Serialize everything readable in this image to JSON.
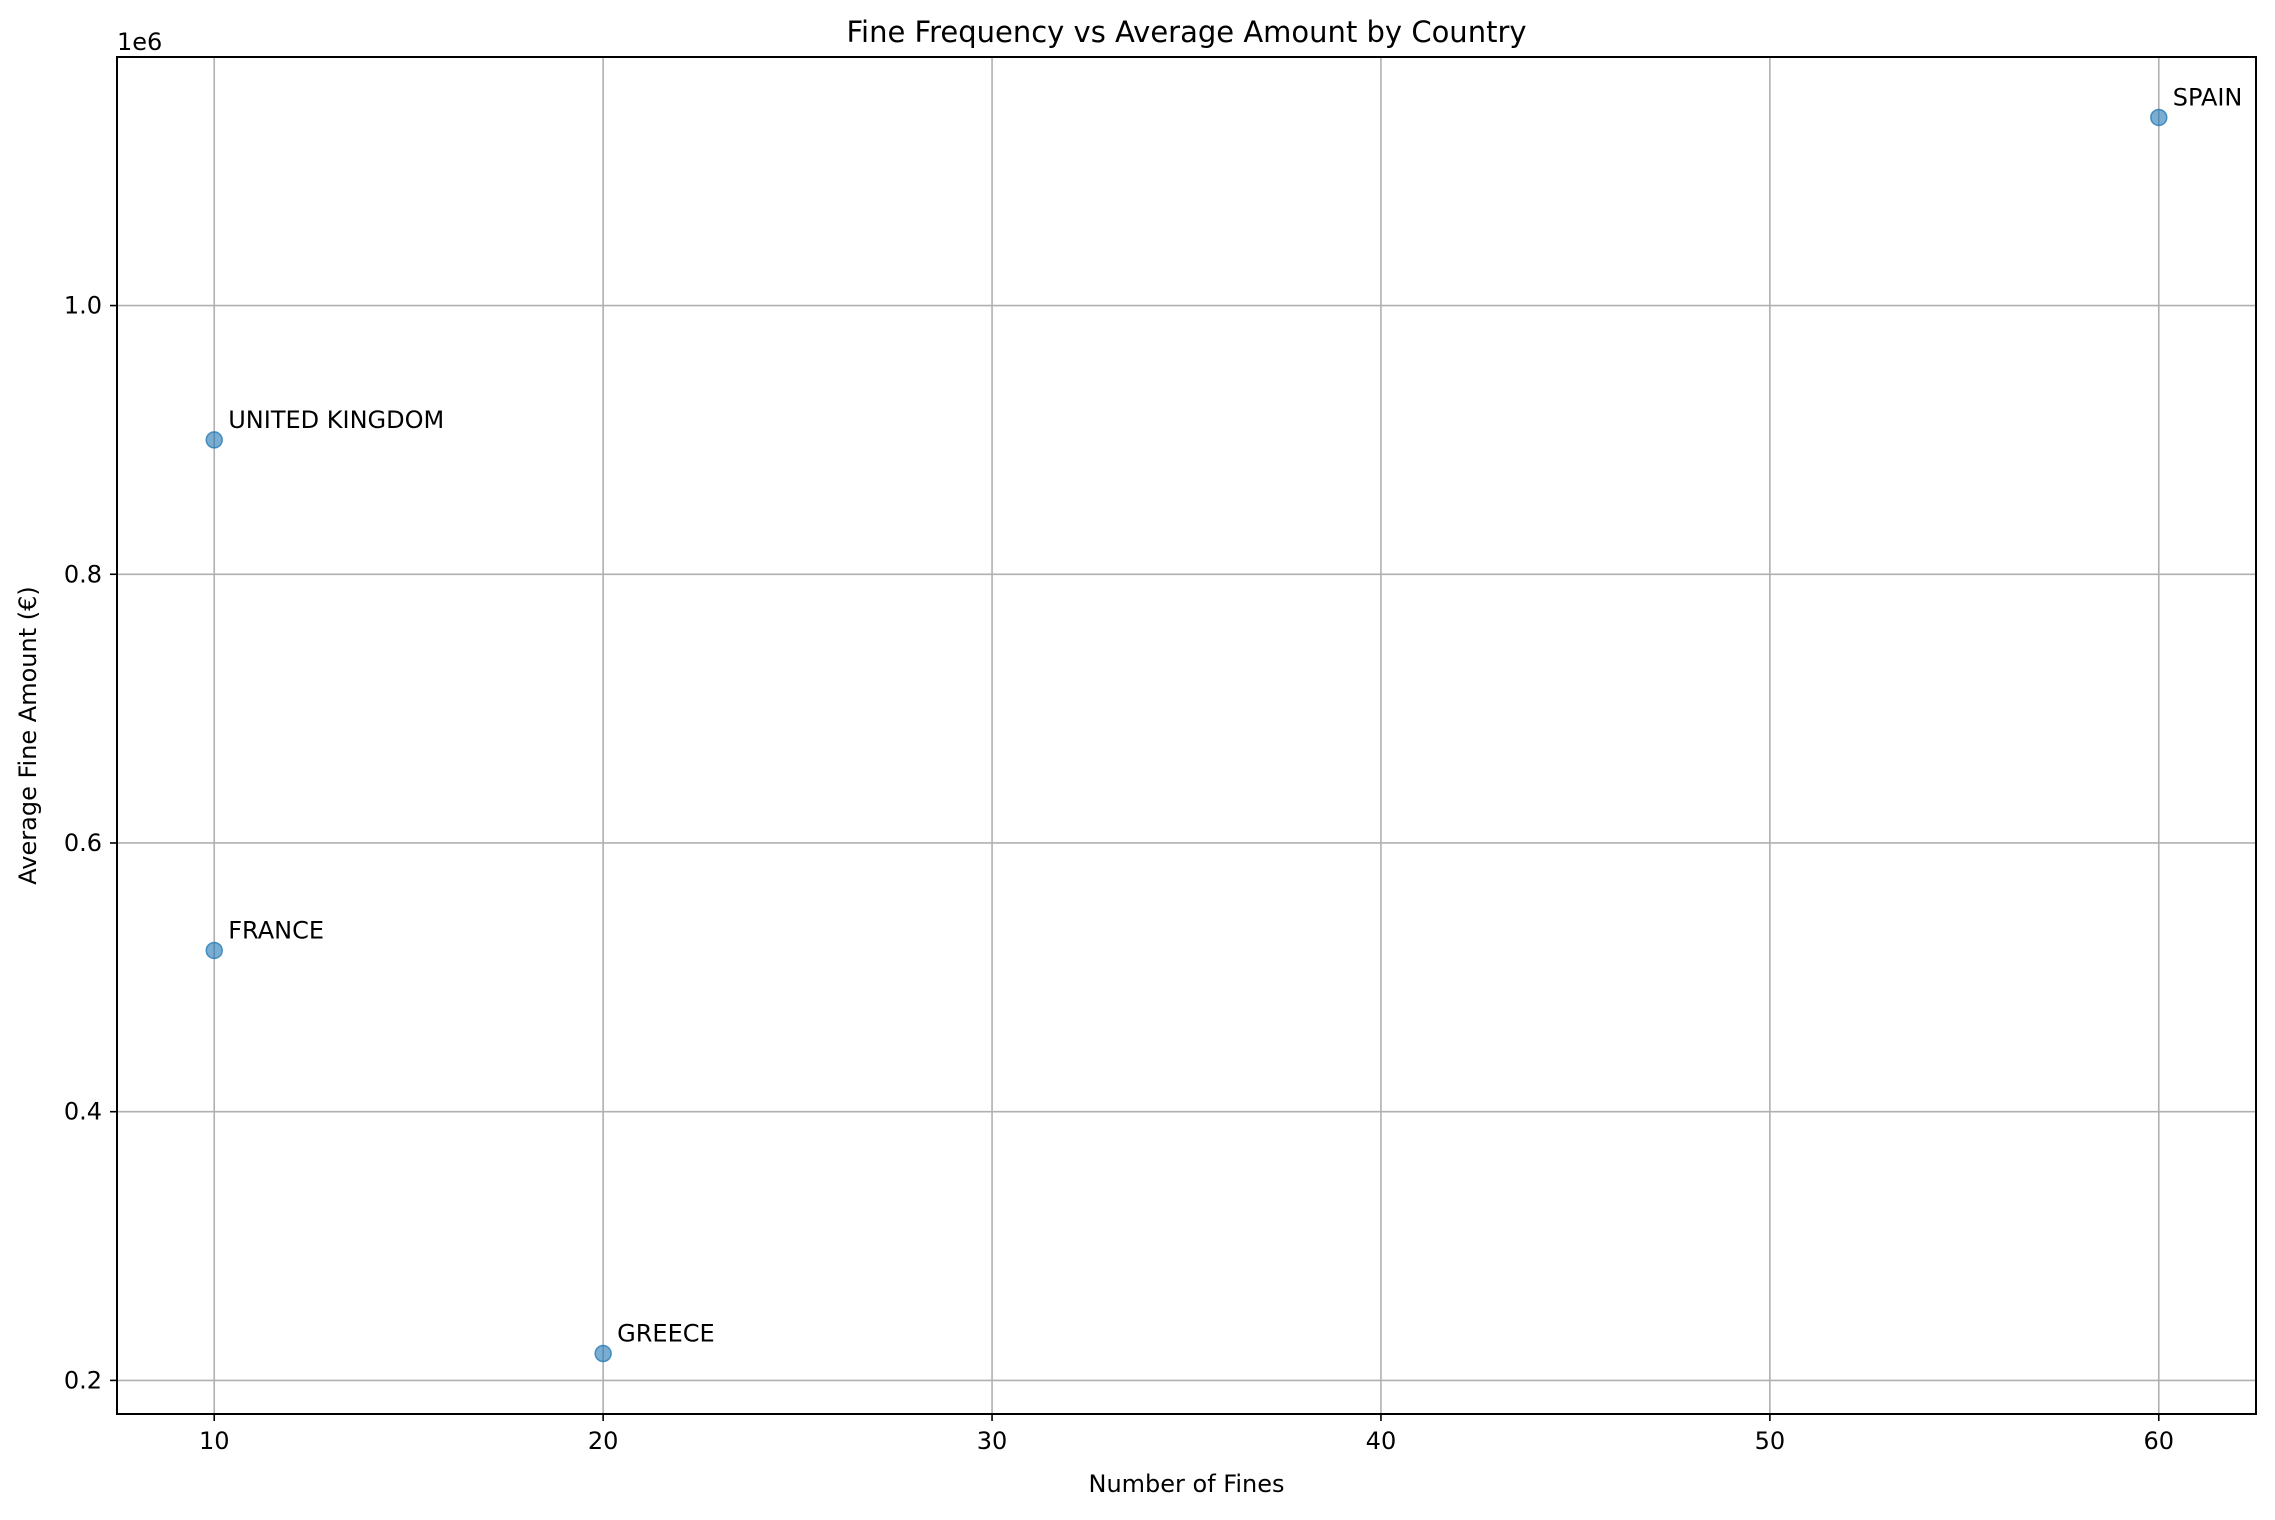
{
  "chart_data": {
    "type": "scatter",
    "title": "Fine Frequency vs Average Amount by Country",
    "xlabel": "Number of Fines",
    "ylabel": "Average Fine Amount (€)",
    "y_offset_label": "1e6",
    "xlim": [
      7.5,
      62.5
    ],
    "ylim": [
      0.175,
      1.185
    ],
    "x_ticks": [
      10,
      20,
      30,
      40,
      50,
      60
    ],
    "x_tick_labels": [
      "10",
      "20",
      "30",
      "40",
      "50",
      "60"
    ],
    "y_ticks": [
      0.2,
      0.4,
      0.6,
      0.8,
      1.0
    ],
    "y_tick_labels": [
      "0.2",
      "0.4",
      "0.6",
      "0.8",
      "1.0"
    ],
    "grid": true,
    "marker_color": "#1f77b4",
    "points": [
      {
        "label": "SPAIN",
        "x": 60,
        "y": 1.14
      },
      {
        "label": "UNITED KINGDOM",
        "x": 10,
        "y": 0.9
      },
      {
        "label": "FRANCE",
        "x": 10,
        "y": 0.52
      },
      {
        "label": "GREECE",
        "x": 20,
        "y": 0.22
      }
    ]
  }
}
